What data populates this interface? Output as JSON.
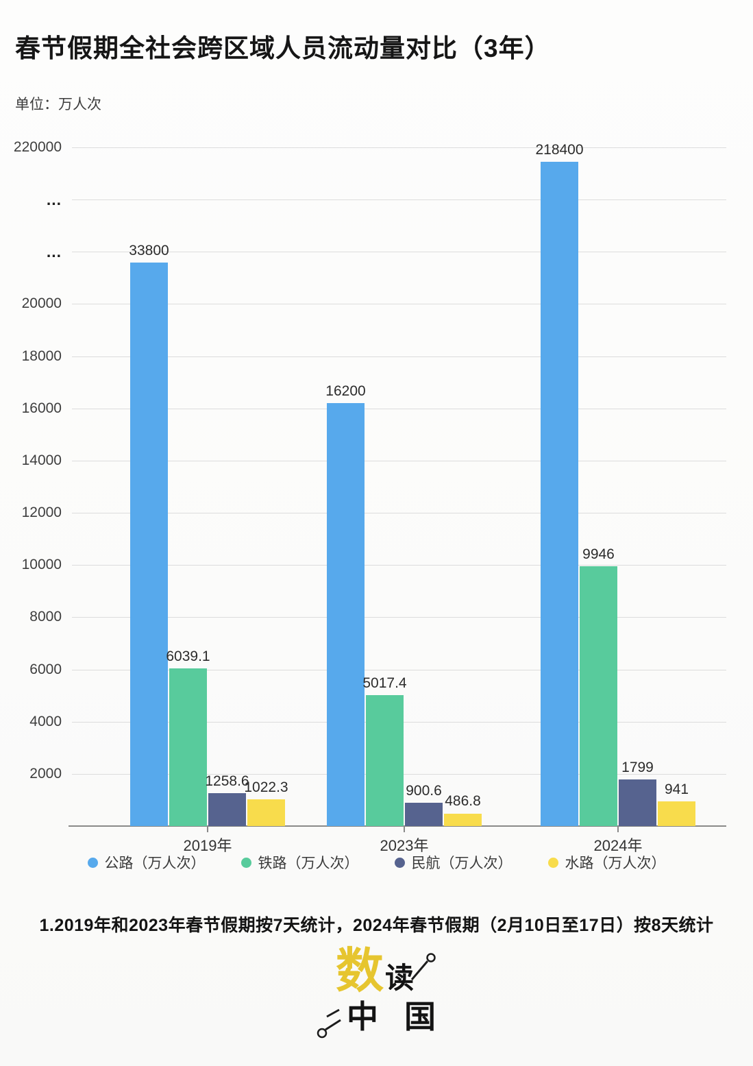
{
  "title": "春节假期全社会跨区域人员流动量对比（3年）",
  "unit_label": "单位：万人次",
  "footnote": "1.2019年和2023年春节假期按7天统计，2024年春节假期（2月10日至17日）按8天统计",
  "logo": {
    "char_main": "数",
    "char_second": "读",
    "char_bottom": "中国",
    "accent_color": "#E6C52F"
  },
  "chart_data": {
    "type": "bar",
    "title": "春节假期全社会跨区域人员流动量对比（3年）",
    "unit": "万人次",
    "categories": [
      "2019年",
      "2023年",
      "2024年"
    ],
    "series": [
      {
        "key": "highway",
        "name": "公路（万人次）",
        "color": "#57A9EC",
        "values": [
          33800,
          16200,
          218400
        ]
      },
      {
        "key": "railway",
        "name": "铁路（万人次）",
        "color": "#58CB9C",
        "values": [
          6039.1,
          5017.4,
          9946
        ]
      },
      {
        "key": "aviation",
        "name": "民航（万人次）",
        "color": "#56638F",
        "values": [
          1258.6,
          900.6,
          1799
        ]
      },
      {
        "key": "waterway",
        "name": "水路（万人次）",
        "color": "#F8DC4C",
        "values": [
          1022.3,
          486.8,
          941
        ]
      }
    ],
    "y_axis": {
      "tick_labels_top_to_bottom": [
        "220000",
        "...",
        "...",
        "20000",
        "18000",
        "16000",
        "14000",
        "12000",
        "10000",
        "8000",
        "6000",
        "4000",
        "2000"
      ],
      "broken_axis": true,
      "linear_max": 20000,
      "linear_units_per_step": 2000,
      "grid": true
    },
    "axis_break_display_steps": {
      "33800": 10.8,
      "218400": 12.72
    },
    "legend_position": "bottom"
  }
}
